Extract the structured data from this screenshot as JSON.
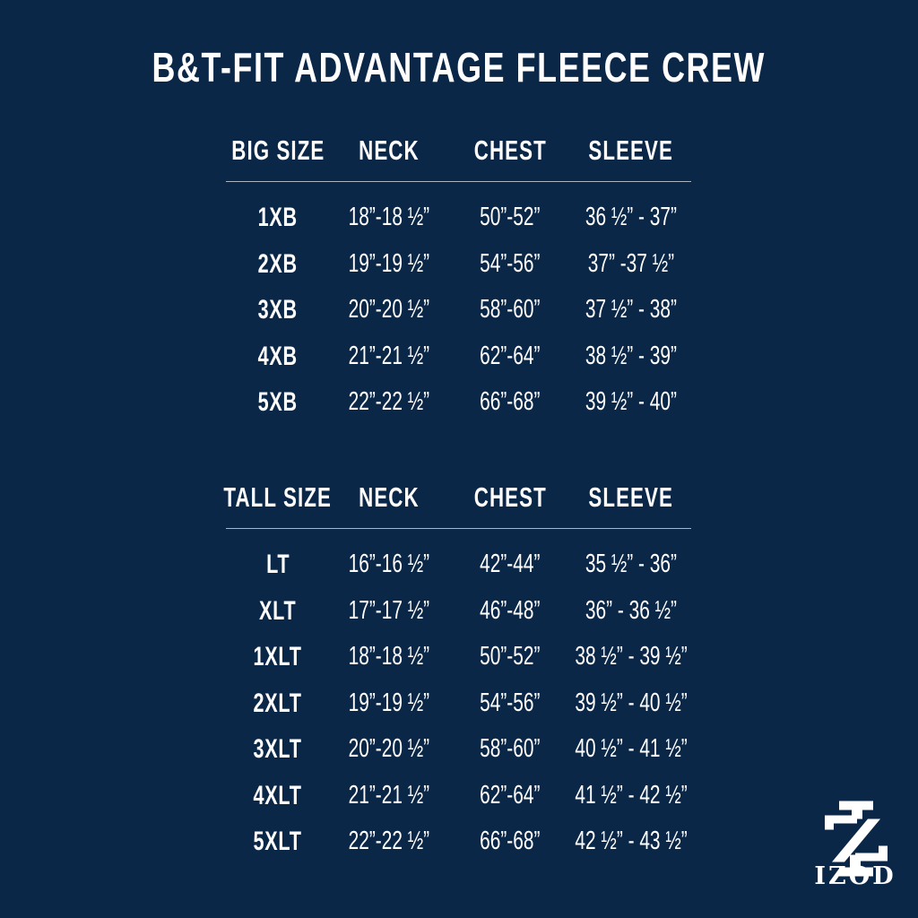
{
  "title": "B&T-FIT ADVANTAGE FLEECE CREW",
  "tables": [
    {
      "headers": [
        "BIG SIZE",
        "NECK",
        "CHEST",
        "SLEEVE"
      ],
      "rows": [
        [
          "1XB",
          "18”-18 ½”",
          "50”-52”",
          "36 ½” - 37”"
        ],
        [
          "2XB",
          "19”-19 ½”",
          "54”-56”",
          "37” -37 ½”"
        ],
        [
          "3XB",
          "20”-20 ½”",
          "58”-60”",
          "37 ½” - 38”"
        ],
        [
          "4XB",
          "21”-21 ½”",
          "62”-64”",
          "38 ½” - 39”"
        ],
        [
          "5XB",
          "22”-22 ½”",
          "66”-68”",
          "39 ½” - 40”"
        ]
      ]
    },
    {
      "headers": [
        "TALL SIZE",
        "NECK",
        "CHEST",
        "SLEEVE"
      ],
      "rows": [
        [
          "LT",
          "16”-16 ½”",
          "42”-44”",
          "35 ½” - 36”"
        ],
        [
          "XLT",
          "17”-17 ½”",
          "46”-48”",
          "36” - 36 ½”"
        ],
        [
          "1XLT",
          "18”-18 ½”",
          "50”-52”",
          "38 ½” - 39 ½”"
        ],
        [
          "2XLT",
          "19”-19 ½”",
          "54”-56”",
          "39 ½” - 40 ½”"
        ],
        [
          "3XLT",
          "20”-20 ½”",
          "58”-60”",
          "40 ½” - 41 ½”"
        ],
        [
          "4XLT",
          "21”-21 ½”",
          "62”-64”",
          "41 ½” - 42 ½”"
        ],
        [
          "5XLT",
          "22”-22 ½”",
          "66”-68”",
          "42 ½” - 43 ½”"
        ]
      ]
    }
  ],
  "logo": {
    "text": "IZOD"
  },
  "colors": {
    "background": "#0b2748",
    "text": "#ffffff",
    "rule": "#aab4c2"
  }
}
